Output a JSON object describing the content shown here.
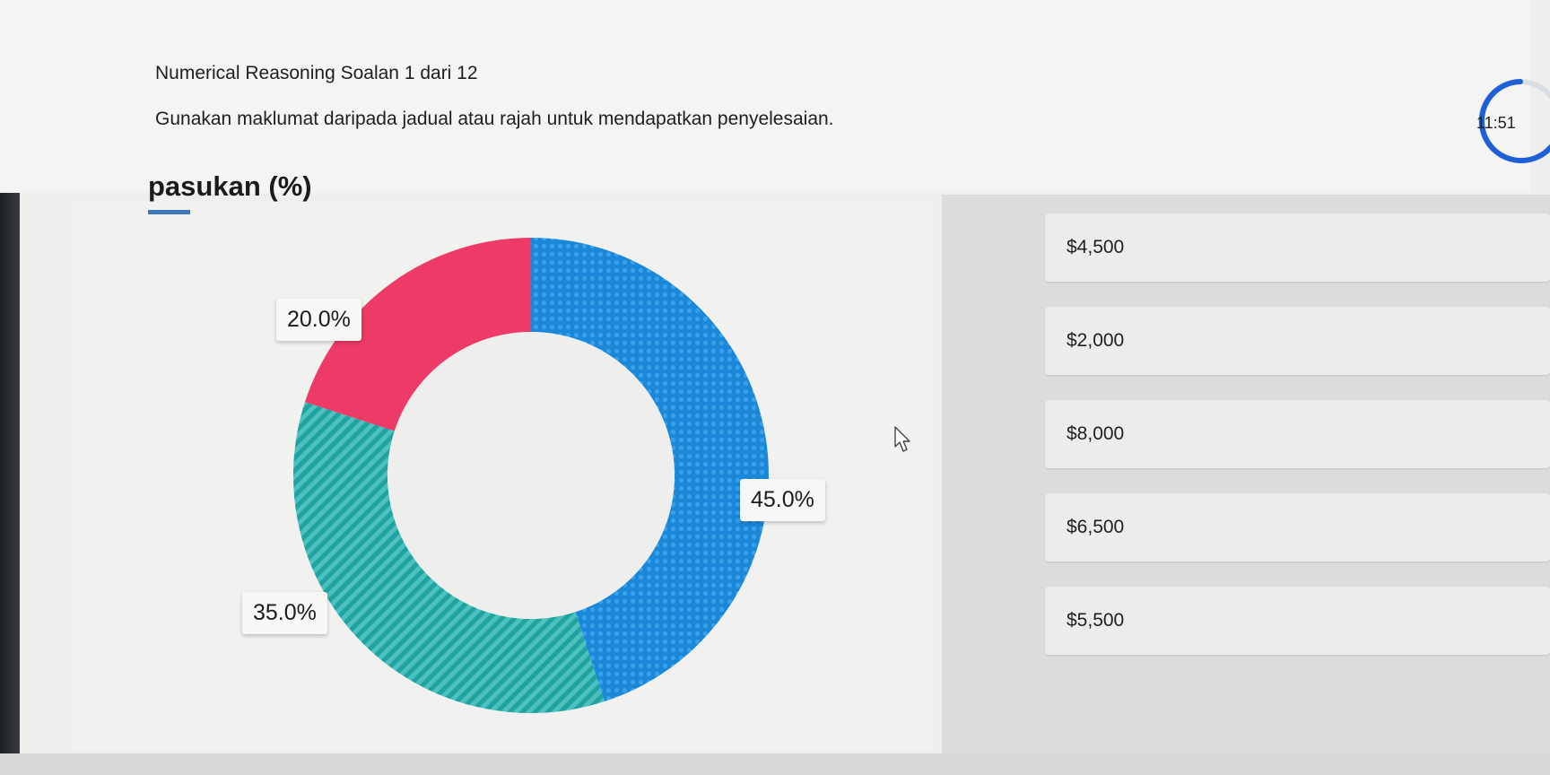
{
  "header": {
    "title": "Numerical Reasoning Soalan 1 dari 12",
    "instruction": "Gunakan maklumat daripada jadual atau rajah untuk mendapatkan penyelesaian.",
    "timer": "11:51"
  },
  "chart_data": {
    "type": "pie",
    "title": "pasukan (%)",
    "labels": [
      "45.0%",
      "35.0%",
      "20.0%"
    ],
    "values": [
      45.0,
      35.0,
      20.0
    ],
    "colors": [
      "#1a87d8",
      "#1fa2a0",
      "#ee3a66"
    ],
    "hole": true
  },
  "options": [
    {
      "label": "$4,500"
    },
    {
      "label": "$2,000"
    },
    {
      "label": "$8,000"
    },
    {
      "label": "$6,500"
    },
    {
      "label": "$5,500"
    }
  ],
  "colors": {
    "timer_ring": "#1f5fd6"
  }
}
